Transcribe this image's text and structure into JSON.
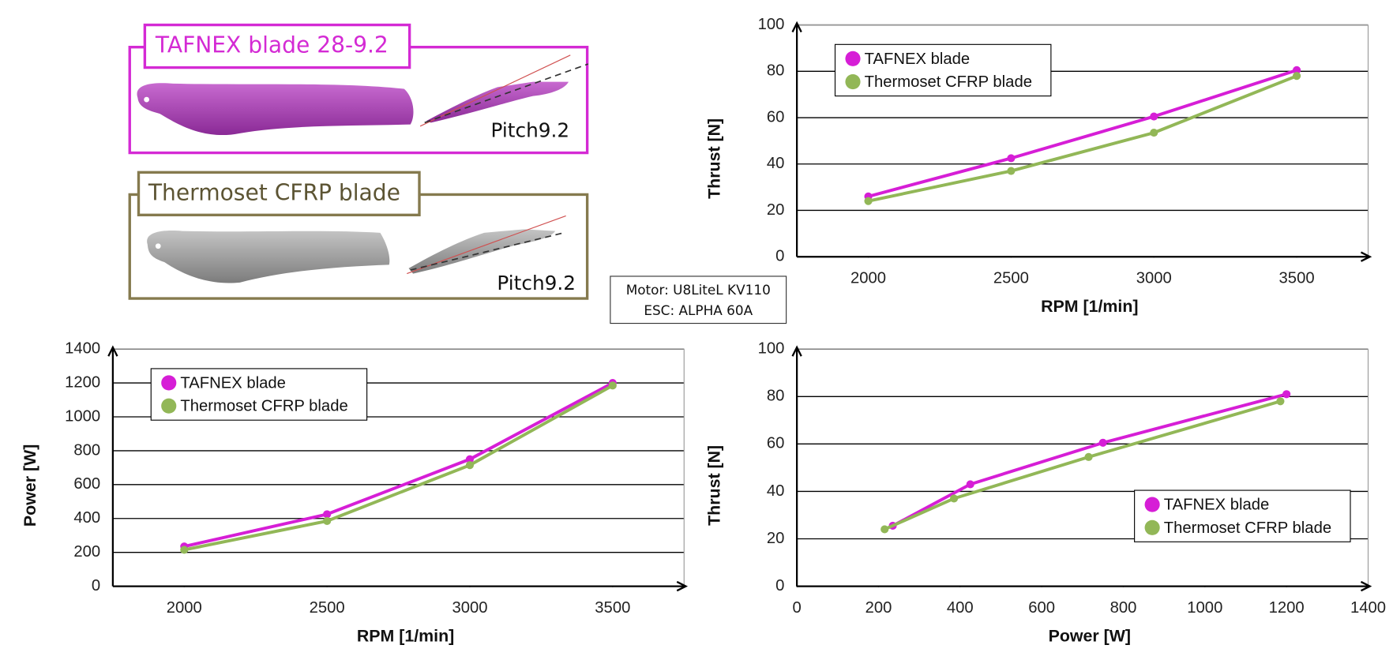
{
  "panels": [
    {
      "label": "TAFNEX blade 28-9.2",
      "pitch": "Pitch9.2"
    },
    {
      "label": "Thermoset CFRP blade",
      "pitch": "Pitch9.2"
    }
  ],
  "note": [
    "Motor: U8LiteL KV110",
    "ESC: ALPHA 60A"
  ],
  "chart_data": [
    {
      "type": "line",
      "x_label": "RPM   [1/min]",
      "y_label": "Thrust   [N]",
      "x": [
        2000,
        2500,
        3000,
        3500
      ],
      "xlim": [
        1750,
        3750
      ],
      "xticks": [
        2000,
        2500,
        3000,
        3500
      ],
      "ylim": [
        0,
        100
      ],
      "yticks": [
        0,
        20,
        40,
        60,
        80,
        100
      ],
      "grid": true,
      "legend": "upper left",
      "series": [
        {
          "name": "TAFNEX blade",
          "color": "#d61ed6",
          "values": [
            26,
            42.5,
            60.5,
            80.5
          ]
        },
        {
          "name": "Thermoset CFRP blade",
          "color": "#92b757",
          "values": [
            24,
            37,
            53.5,
            78
          ]
        }
      ]
    },
    {
      "type": "line",
      "x_label": "RPM   [1/min]",
      "y_label": "Power   [W]",
      "x": [
        2000,
        2500,
        3000,
        3500
      ],
      "xlim": [
        1750,
        3750
      ],
      "xticks": [
        2000,
        2500,
        3000,
        3500
      ],
      "ylim": [
        0,
        1400
      ],
      "yticks": [
        0,
        200,
        400,
        600,
        800,
        1000,
        1200,
        1400
      ],
      "grid": true,
      "legend": "upper left",
      "series": [
        {
          "name": "TAFNEX blade",
          "color": "#d61ed6",
          "values": [
            235,
            425,
            750,
            1200
          ]
        },
        {
          "name": "Thermoset CFRP blade",
          "color": "#92b757",
          "values": [
            215,
            385,
            715,
            1185
          ]
        }
      ]
    },
    {
      "type": "line",
      "x_label": "Power   [W]",
      "y_label": "Thrust   [N]",
      "xlim": [
        0,
        1400
      ],
      "xticks": [
        0,
        200,
        400,
        600,
        800,
        1000,
        1200,
        1400
      ],
      "ylim": [
        0,
        100
      ],
      "yticks": [
        0,
        20,
        40,
        60,
        80,
        100
      ],
      "grid": true,
      "legend": "lower right",
      "series": [
        {
          "name": "TAFNEX blade",
          "color": "#d61ed6",
          "x": [
            235,
            425,
            750,
            1200
          ],
          "values": [
            25.5,
            43,
            60.5,
            81
          ]
        },
        {
          "name": "Thermoset CFRP blade",
          "color": "#92b757",
          "x": [
            215,
            385,
            715,
            1185
          ],
          "values": [
            24,
            37,
            54.5,
            78
          ]
        }
      ]
    }
  ]
}
